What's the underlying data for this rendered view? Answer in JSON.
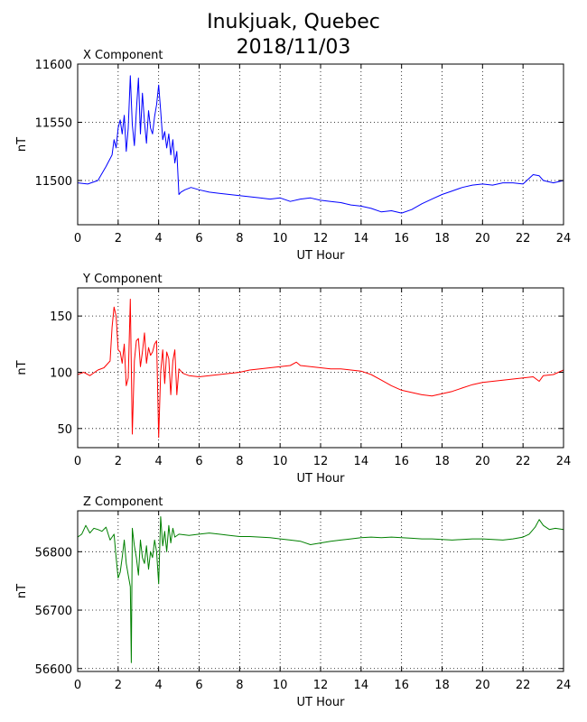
{
  "title_line1": "Inukjuak, Quebec",
  "title_line2": "2018/11/03",
  "chart_data": [
    {
      "type": "line",
      "title": "X Component",
      "xlabel": "UT Hour",
      "ylabel": "nT",
      "color": "#0000ff",
      "xlim": [
        0,
        24
      ],
      "ylim": [
        11462,
        11600
      ],
      "xticks": [
        0,
        2,
        4,
        6,
        8,
        10,
        12,
        14,
        16,
        18,
        20,
        22,
        24
      ],
      "yticks": [
        11500,
        11550,
        11600
      ],
      "grid": true,
      "series": [
        {
          "x": [
            0,
            0.5,
            1,
            1.4,
            1.7,
            1.8,
            1.9,
            2.0,
            2.1,
            2.2,
            2.3,
            2.4,
            2.5,
            2.6,
            2.7,
            2.8,
            2.9,
            3.0,
            3.1,
            3.2,
            3.3,
            3.4,
            3.5,
            3.6,
            3.7,
            3.8,
            3.9,
            4.0,
            4.1,
            4.2,
            4.3,
            4.4,
            4.5,
            4.6,
            4.7,
            4.8,
            4.9,
            5.0,
            5.1,
            5.3,
            5.6,
            6,
            6.5,
            7,
            7.5,
            8,
            8.5,
            9,
            9.5,
            10,
            10.5,
            11,
            11.5,
            12,
            12.5,
            13,
            13.5,
            14,
            14.5,
            15,
            15.5,
            16,
            16.5,
            17,
            17.5,
            18,
            18.5,
            19,
            19.5,
            20,
            20.5,
            21,
            21.5,
            22,
            22.5,
            22.8,
            23,
            23.5,
            24
          ],
          "y": [
            11498,
            11497,
            11500,
            11512,
            11522,
            11535,
            11528,
            11545,
            11552,
            11540,
            11556,
            11525,
            11545,
            11590,
            11548,
            11530,
            11560,
            11588,
            11540,
            11575,
            11550,
            11532,
            11560,
            11545,
            11540,
            11555,
            11565,
            11582,
            11560,
            11535,
            11542,
            11528,
            11540,
            11522,
            11535,
            11515,
            11525,
            11488,
            11490,
            11492,
            11494,
            11492,
            11490,
            11489,
            11488,
            11487,
            11486,
            11485,
            11484,
            11485,
            11482,
            11484,
            11485,
            11483,
            11482,
            11481,
            11479,
            11478,
            11476,
            11473,
            11474,
            11472,
            11475,
            11480,
            11484,
            11488,
            11491,
            11494,
            11496,
            11497,
            11496,
            11498,
            11498,
            11497,
            11505,
            11504,
            11500,
            11498,
            11500
          ]
        }
      ]
    },
    {
      "type": "line",
      "title": "Y Component",
      "xlabel": "UT Hour",
      "ylabel": "nT",
      "color": "#ff0000",
      "xlim": [
        0,
        24
      ],
      "ylim": [
        33,
        175
      ],
      "xticks": [
        0,
        2,
        4,
        6,
        8,
        10,
        12,
        14,
        16,
        18,
        20,
        22,
        24
      ],
      "yticks": [
        50,
        100,
        150
      ],
      "grid": true,
      "series": [
        {
          "x": [
            0,
            0.3,
            0.6,
            1,
            1.3,
            1.6,
            1.7,
            1.8,
            1.9,
            2.0,
            2.1,
            2.2,
            2.3,
            2.4,
            2.5,
            2.6,
            2.7,
            2.8,
            2.9,
            3.0,
            3.1,
            3.2,
            3.3,
            3.4,
            3.5,
            3.6,
            3.7,
            3.8,
            3.9,
            4.0,
            4.1,
            4.2,
            4.3,
            4.4,
            4.5,
            4.6,
            4.7,
            4.8,
            4.9,
            5.0,
            5.2,
            5.5,
            6,
            6.5,
            7,
            7.5,
            8,
            8.5,
            9,
            9.5,
            10,
            10.5,
            10.8,
            11,
            11.5,
            12,
            12.5,
            13,
            13.5,
            14,
            14.5,
            15,
            15.5,
            16,
            16.5,
            17,
            17.5,
            18,
            18.5,
            19,
            19.5,
            20,
            20.5,
            21,
            21.5,
            22,
            22.5,
            22.8,
            23,
            23.5,
            24
          ],
          "y": [
            98,
            100,
            97,
            102,
            104,
            110,
            140,
            158,
            150,
            120,
            118,
            108,
            125,
            88,
            95,
            165,
            45,
            110,
            128,
            130,
            105,
            118,
            135,
            108,
            122,
            115,
            118,
            125,
            128,
            42,
            100,
            120,
            90,
            118,
            112,
            80,
            110,
            120,
            80,
            103,
            99,
            97,
            96,
            97,
            98,
            99,
            100,
            102,
            103,
            104,
            105,
            106,
            109,
            106,
            105,
            104,
            103,
            103,
            102,
            101,
            98,
            93,
            88,
            84,
            82,
            80,
            79,
            81,
            83,
            86,
            89,
            91,
            92,
            93,
            94,
            95,
            96,
            92,
            97,
            98,
            102
          ]
        }
      ]
    },
    {
      "type": "line",
      "title": "Z Component",
      "xlabel": "UT Hour",
      "ylabel": "nT",
      "color": "#008000",
      "xlim": [
        0,
        24
      ],
      "ylim": [
        56595,
        56870
      ],
      "xticks": [
        0,
        2,
        4,
        6,
        8,
        10,
        12,
        14,
        16,
        18,
        20,
        22,
        24
      ],
      "yticks": [
        56600,
        56700,
        56800
      ],
      "grid": true,
      "series": [
        {
          "x": [
            0,
            0.2,
            0.4,
            0.6,
            0.8,
            1.0,
            1.2,
            1.4,
            1.6,
            1.8,
            1.9,
            2.0,
            2.1,
            2.2,
            2.3,
            2.4,
            2.5,
            2.6,
            2.65,
            2.7,
            2.8,
            2.9,
            3.0,
            3.1,
            3.2,
            3.3,
            3.4,
            3.5,
            3.6,
            3.7,
            3.8,
            3.9,
            4.0,
            4.1,
            4.2,
            4.3,
            4.4,
            4.5,
            4.6,
            4.7,
            4.8,
            5.0,
            5.5,
            6,
            6.5,
            7,
            7.5,
            8,
            8.5,
            9,
            9.5,
            10,
            10.5,
            11,
            11.5,
            12,
            12.5,
            13,
            13.5,
            14,
            14.5,
            15,
            15.5,
            16,
            16.5,
            17,
            17.5,
            18,
            18.5,
            19,
            19.5,
            20,
            20.5,
            21,
            21.5,
            22,
            22.3,
            22.6,
            22.8,
            23,
            23.3,
            23.6,
            24
          ],
          "y": [
            56825,
            56830,
            56845,
            56832,
            56840,
            56838,
            56835,
            56842,
            56820,
            56830,
            56790,
            56755,
            56765,
            56790,
            56820,
            56780,
            56760,
            56740,
            56610,
            56840,
            56810,
            56790,
            56760,
            56820,
            56790,
            56780,
            56810,
            56770,
            56800,
            56790,
            56820,
            56800,
            56745,
            56860,
            56810,
            56835,
            56800,
            56845,
            56815,
            56840,
            56825,
            56830,
            56828,
            56830,
            56832,
            56830,
            56828,
            56826,
            56826,
            56825,
            56824,
            56822,
            56820,
            56818,
            56812,
            56815,
            56818,
            56820,
            56822,
            56824,
            56825,
            56824,
            56825,
            56824,
            56823,
            56822,
            56822,
            56821,
            56820,
            56821,
            56822,
            56822,
            56821,
            56820,
            56822,
            56825,
            56830,
            56842,
            56855,
            56845,
            56838,
            56840,
            56838
          ]
        }
      ]
    }
  ]
}
